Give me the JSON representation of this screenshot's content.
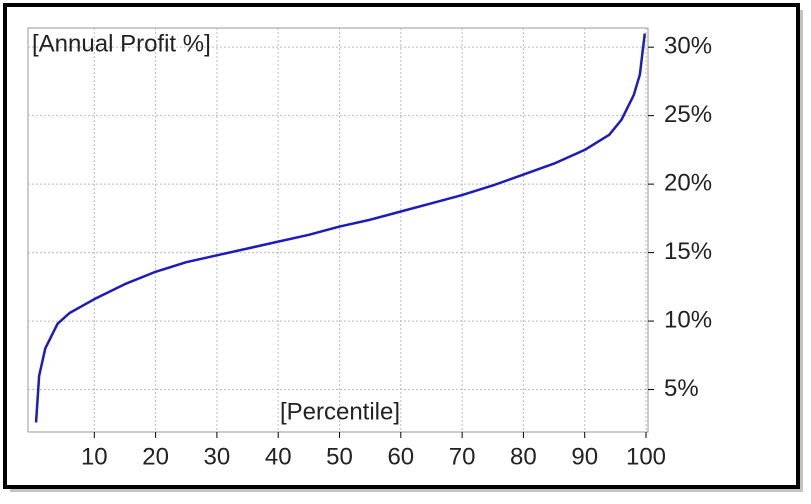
{
  "chart_data": {
    "type": "line",
    "title": "[Annual Profit %]",
    "x_label": "[Percentile]",
    "x": [
      0.5,
      1,
      2,
      4,
      6,
      10,
      15,
      20,
      25,
      30,
      35,
      40,
      45,
      50,
      55,
      60,
      65,
      70,
      75,
      80,
      85,
      90,
      94,
      96,
      98,
      99,
      99.8
    ],
    "series": [
      {
        "color": "#1c1cb8",
        "values": [
          2.6,
          6,
          8,
          9.8,
          10.6,
          11.6,
          12.7,
          13.6,
          14.3,
          14.8,
          15.3,
          15.8,
          16.3,
          16.9,
          17.4,
          18,
          18.6,
          19.2,
          19.9,
          20.7,
          21.5,
          22.5,
          23.6,
          24.7,
          26.5,
          28,
          31
        ]
      }
    ],
    "xlim": [
      0,
      100
    ],
    "xticks": [
      10,
      20,
      30,
      40,
      50,
      60,
      70,
      80,
      90,
      100
    ],
    "ylim": [
      1.9,
      31.4
    ],
    "yticks": [
      {
        "value": 5,
        "label": "5%"
      },
      {
        "value": 10,
        "label": "10%"
      },
      {
        "value": 15,
        "label": "15%"
      },
      {
        "value": 20,
        "label": "20%"
      },
      {
        "value": 25,
        "label": "25%"
      },
      {
        "value": 30,
        "label": "30%"
      }
    ],
    "grid": true
  }
}
